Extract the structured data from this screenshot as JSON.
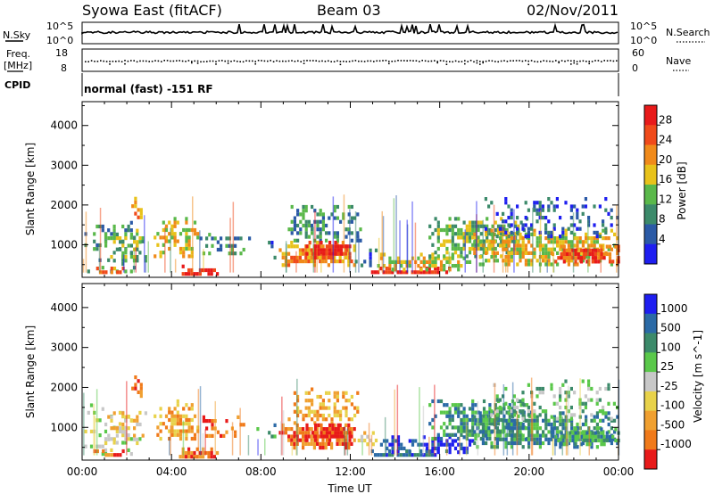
{
  "header": {
    "title": "Syowa East (fitACF)",
    "beam": "Beam 03",
    "date": "02/Nov/2011"
  },
  "strip_nsky": {
    "label": "N.Sky",
    "tick_top": "10^5",
    "tick_bottom": "10^0",
    "right_label": "N.Search",
    "right_tick_top": "10^5",
    "right_tick_bottom": "10^0"
  },
  "strip_freq": {
    "label_line1": "Freq.",
    "label_line2": "[MHz]",
    "tick_top": "18",
    "tick_bottom": "8",
    "right_label": "Nave",
    "right_tick_top": "60",
    "right_tick_bottom": "0"
  },
  "strip_cpid": {
    "label": "CPID",
    "text": "normal (fast) -151 RF"
  },
  "colors": {
    "power": [
      "#1e1ef0",
      "#2b5aa6",
      "#3c8a6a",
      "#5ab84a",
      "#e8c21a",
      "#f08a1a",
      "#f04a1a",
      "#e81a1a"
    ],
    "velocity": [
      "#e81a1a",
      "#f07a1a",
      "#f0a030",
      "#e8d24a",
      "#c8c8c8",
      "#5ac84a",
      "#3c8a6a",
      "#2b6aa6",
      "#1e1ef0"
    ]
  },
  "chart_data": [
    {
      "type": "heatmap",
      "name": "power",
      "ylabel": "Slant Range [km]",
      "xlabel": "",
      "x_ticks": [
        "00:00",
        "04:00",
        "08:00",
        "12:00",
        "16:00",
        "20:00",
        "00:00"
      ],
      "y_ticks": [
        1000,
        2000,
        3000,
        4000
      ],
      "ylim": [
        180,
        4600
      ],
      "xlim_hours": [
        0,
        24
      ],
      "colorbar_label": "Power [dB]",
      "colorbar_ticks": [
        "28",
        "24",
        "20",
        "16",
        "12",
        "8",
        "4"
      ],
      "colorbar_range": [
        0,
        32
      ]
    },
    {
      "type": "heatmap",
      "name": "velocity",
      "ylabel": "Slant Range [km]",
      "xlabel": "Time UT",
      "x_ticks": [
        "00:00",
        "04:00",
        "08:00",
        "12:00",
        "16:00",
        "20:00",
        "00:00"
      ],
      "y_ticks": [
        1000,
        2000,
        3000,
        4000
      ],
      "ylim": [
        180,
        4600
      ],
      "xlim_hours": [
        0,
        24
      ],
      "colorbar_label": "Velocity [m s^-1]",
      "colorbar_ticks": [
        "1000",
        "500",
        "100",
        "25",
        "-25",
        "-100",
        "-500",
        "-1000"
      ]
    }
  ]
}
